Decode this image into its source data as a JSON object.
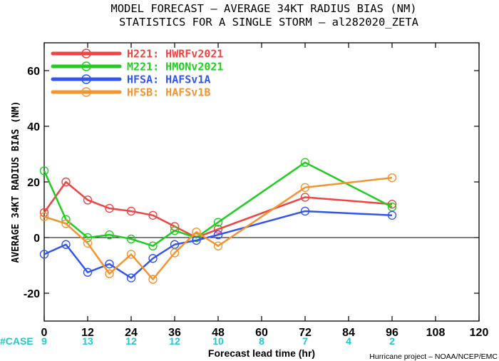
{
  "chart_data": {
    "type": "line",
    "title": "MODEL FORECAST – AVERAGE 34KT RADIUS BIAS (NM)",
    "subtitle": "STATISTICS FOR A SINGLE STORM – al282020_ZETA",
    "xlabel": "Forecast lead time (hr)",
    "ylabel": "AVERAGE 34KT RADIUS BIAS (NM)",
    "xlim": [
      0,
      120
    ],
    "ylim": [
      -30,
      70
    ],
    "xticks": [
      0,
      12,
      24,
      36,
      48,
      60,
      72,
      84,
      96,
      108,
      120
    ],
    "yticks": [
      -20,
      0,
      20,
      40,
      60
    ],
    "case_label": "#CASE",
    "case_color": "#22c7c7",
    "cases": [
      {
        "x": 0,
        "n": "9"
      },
      {
        "x": 12,
        "n": "13"
      },
      {
        "x": 24,
        "n": "12"
      },
      {
        "x": 36,
        "n": "12"
      },
      {
        "x": 48,
        "n": "10"
      },
      {
        "x": 60,
        "n": "8"
      },
      {
        "x": 72,
        "n": "7"
      },
      {
        "x": 84,
        "n": "4"
      },
      {
        "x": 96,
        "n": "2"
      }
    ],
    "legend_position": "top-left",
    "grid": false,
    "series": [
      {
        "name": "H221: HWRFv2021",
        "color": "#ee4444",
        "x": [
          0,
          6,
          12,
          18,
          24,
          30,
          36,
          42,
          48,
          72,
          96
        ],
        "y": [
          9,
          20,
          13.5,
          10.5,
          9.5,
          8,
          4,
          0,
          3,
          14.5,
          12
        ]
      },
      {
        "name": "M221: HMONv2021",
        "color": "#22cc22",
        "x": [
          0,
          6,
          12,
          18,
          24,
          30,
          36,
          42,
          48,
          72,
          96
        ],
        "y": [
          24,
          6.5,
          0,
          1,
          -0.5,
          -3,
          2.5,
          0,
          5.5,
          27,
          11
        ]
      },
      {
        "name": "HFSA: HAFSv1A",
        "color": "#3355ee",
        "x": [
          0,
          6,
          12,
          18,
          24,
          30,
          36,
          42,
          48,
          72,
          96
        ],
        "y": [
          -6,
          -2.5,
          -12.5,
          -9.5,
          -14.5,
          -7.5,
          -2.5,
          -1,
          1,
          9.5,
          8
        ]
      },
      {
        "name": "HFSB: HAFSv1B",
        "color": "#f29430",
        "x": [
          0,
          6,
          12,
          18,
          24,
          30,
          36,
          42,
          48,
          72,
          96
        ],
        "y": [
          7.5,
          5,
          -2,
          -13,
          -6,
          -15,
          -5.5,
          2,
          -3,
          18,
          21.5
        ]
      }
    ]
  },
  "credit": "Hurricane project – NOAA/NCEP/EMC"
}
